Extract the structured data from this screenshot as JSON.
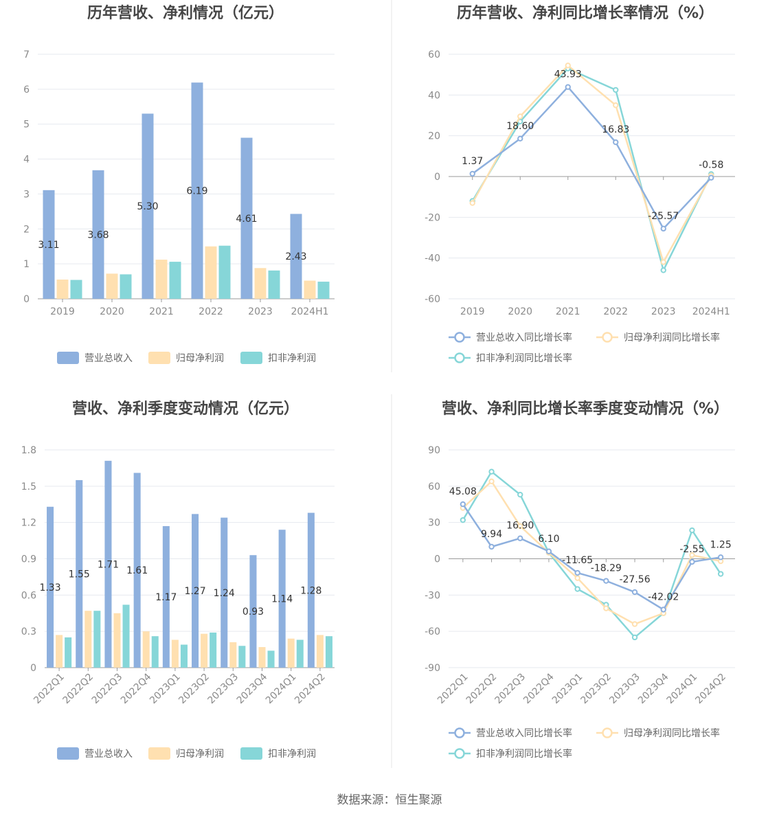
{
  "footer": "数据来源：恒生聚源",
  "colors": {
    "revenue": "#8eb0de",
    "net_profit": "#ffe0b0",
    "deducted_profit": "#86d6d8",
    "grid": "#e6e9ef",
    "axis": "#9a9a9a"
  },
  "chart_data": [
    {
      "type": "bar",
      "title": "历年营收、净利情况（亿元）",
      "categories": [
        "2019",
        "2020",
        "2021",
        "2022",
        "2023",
        "2024H1"
      ],
      "ylim": [
        0,
        7
      ],
      "yticks": [
        0,
        1,
        2,
        3,
        4,
        5,
        6,
        7
      ],
      "grid": true,
      "legend_position": "bottom",
      "series": [
        {
          "name": "营业总收入",
          "color": "#8eb0de",
          "values": [
            3.11,
            3.68,
            5.3,
            6.19,
            4.61,
            2.43
          ],
          "labels": [
            "3.11",
            "3.68",
            "5.30",
            "6.19",
            "4.61",
            "2.43"
          ]
        },
        {
          "name": "归母净利润",
          "color": "#ffe0b0",
          "values": [
            0.55,
            0.72,
            1.12,
            1.5,
            0.88,
            0.52
          ]
        },
        {
          "name": "扣非净利润",
          "color": "#86d6d8",
          "values": [
            0.54,
            0.7,
            1.06,
            1.52,
            0.81,
            0.49
          ]
        }
      ]
    },
    {
      "type": "line",
      "title": "历年营收、净利同比增长率情况（%）",
      "categories": [
        "2019",
        "2020",
        "2021",
        "2022",
        "2023",
        "2024H1"
      ],
      "ylim": [
        -60,
        60
      ],
      "yticks": [
        -60,
        -40,
        -20,
        0,
        20,
        40,
        60
      ],
      "grid": true,
      "legend_position": "bottom",
      "series": [
        {
          "name": "营业总收入同比增长率",
          "color": "#8eb0de",
          "values": [
            1.37,
            18.6,
            43.93,
            16.83,
            -25.57,
            -0.58
          ],
          "labels": [
            "1.37",
            "18.60",
            "43.93",
            "16.83",
            "-25.57",
            "-0.58"
          ]
        },
        {
          "name": "归母净利润同比增长率",
          "color": "#ffe0b0",
          "values": [
            -13.0,
            29.5,
            54.5,
            35.0,
            -42.0,
            0.5
          ]
        },
        {
          "name": "扣非净利润同比增长率",
          "color": "#86d6d8",
          "values": [
            -12.0,
            27.0,
            53.0,
            42.5,
            -46.0,
            1.2
          ]
        }
      ]
    },
    {
      "type": "bar",
      "title": "营收、净利季度变动情况（亿元）",
      "categories": [
        "2022Q1",
        "2022Q2",
        "2022Q3",
        "2022Q4",
        "2023Q1",
        "2023Q2",
        "2023Q3",
        "2023Q4",
        "2024Q1",
        "2024Q2"
      ],
      "ylim": [
        0,
        1.8
      ],
      "yticks": [
        "0",
        "0.3",
        "0.6",
        "0.9",
        "1.2",
        "1.5",
        "1.8"
      ],
      "grid": true,
      "legend_position": "bottom",
      "series": [
        {
          "name": "营业总收入",
          "color": "#8eb0de",
          "values": [
            1.33,
            1.55,
            1.71,
            1.61,
            1.17,
            1.27,
            1.24,
            0.93,
            1.14,
            1.28
          ],
          "labels": [
            "1.33",
            "1.55",
            "1.71",
            "1.61",
            "1.17",
            "1.27",
            "1.24",
            "0.93",
            "1.14",
            "1.28"
          ]
        },
        {
          "name": "归母净利润",
          "color": "#ffe0b0",
          "values": [
            0.27,
            0.47,
            0.45,
            0.3,
            0.23,
            0.28,
            0.21,
            0.17,
            0.24,
            0.27
          ]
        },
        {
          "name": "扣非净利润",
          "color": "#86d6d8",
          "values": [
            0.25,
            0.47,
            0.52,
            0.26,
            0.19,
            0.29,
            0.18,
            0.14,
            0.23,
            0.26
          ]
        }
      ]
    },
    {
      "type": "line",
      "title": "营收、净利同比增长率季度变动情况（%）",
      "categories": [
        "2022Q1",
        "2022Q2",
        "2022Q3",
        "2022Q4",
        "2023Q1",
        "2023Q2",
        "2023Q3",
        "2023Q4",
        "2024Q1",
        "2024Q2"
      ],
      "ylim": [
        -90,
        90
      ],
      "yticks": [
        -90,
        -60,
        -30,
        0,
        30,
        60,
        90
      ],
      "grid": true,
      "legend_position": "bottom",
      "series": [
        {
          "name": "营业总收入同比增长率",
          "color": "#8eb0de",
          "values": [
            45.08,
            9.94,
            16.9,
            6.1,
            -11.65,
            -18.29,
            -27.56,
            -42.02,
            -2.55,
            1.25
          ],
          "labels": [
            "45.08",
            "9.94",
            "16.90",
            "6.10",
            "-11.65",
            "-18.29",
            "-27.56",
            "-42.02",
            "-2.55",
            "1.25"
          ]
        },
        {
          "name": "归母净利润同比增长率",
          "color": "#ffe0b0",
          "values": [
            42.0,
            64.0,
            27.0,
            5.0,
            -16.0,
            -41.0,
            -54.0,
            -45.0,
            3.0,
            -2.0
          ]
        },
        {
          "name": "扣非净利润同比增长率",
          "color": "#86d6d8",
          "values": [
            32.0,
            72.0,
            53.0,
            5.0,
            -25.0,
            -38.0,
            -65.0,
            -45.0,
            23.5,
            -12.5
          ]
        }
      ]
    }
  ]
}
